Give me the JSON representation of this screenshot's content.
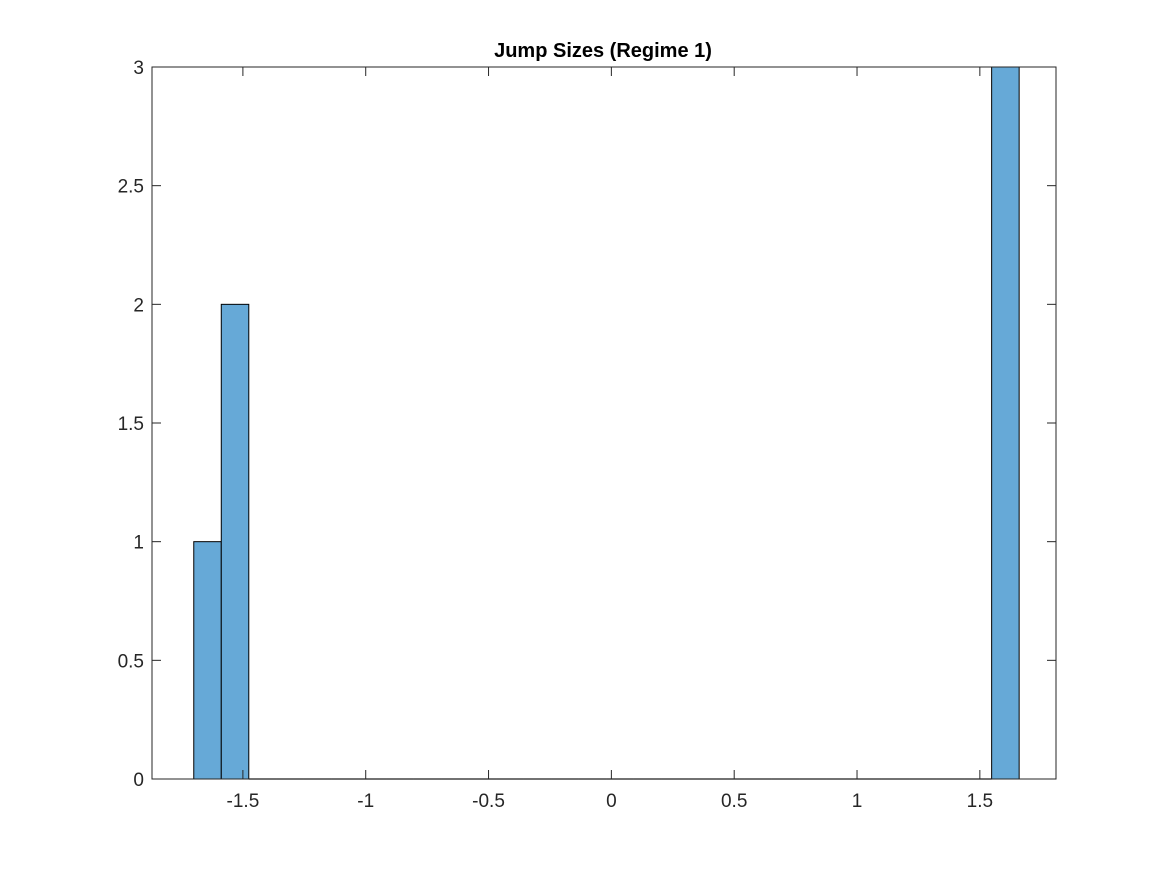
{
  "chart_data": {
    "type": "histogram",
    "title": "Jump Sizes (Regime 1)",
    "xlabel": "",
    "ylabel": "",
    "xlim": [
      -1.87,
      1.81
    ],
    "ylim": [
      0,
      3
    ],
    "x_ticks": [
      -1.5,
      -1,
      -0.5,
      0,
      0.5,
      1,
      1.5
    ],
    "x_tick_labels": [
      "-1.5",
      "-1",
      "-0.5",
      "0",
      "0.5",
      "1",
      "1.5"
    ],
    "y_ticks": [
      0,
      0.5,
      1,
      1.5,
      2,
      2.5,
      3
    ],
    "y_tick_labels": [
      "0",
      "0.5",
      "1",
      "1.5",
      "2",
      "2.5",
      "3"
    ],
    "bin_edges": [
      -1.7,
      -1.588,
      -1.476,
      -1.364,
      -1.252,
      -1.14,
      -1.028,
      -0.916,
      -0.804,
      -0.692,
      -0.58,
      -0.468,
      -0.356,
      -0.244,
      -0.132,
      -0.02,
      0.092,
      0.204,
      0.316,
      0.428,
      0.54,
      0.652,
      0.764,
      0.876,
      0.988,
      1.1,
      1.212,
      1.324,
      1.436,
      1.548,
      1.66
    ],
    "counts": [
      1,
      2,
      0,
      0,
      0,
      0,
      0,
      0,
      0,
      0,
      0,
      0,
      0,
      0,
      0,
      0,
      0,
      0,
      0,
      0,
      0,
      0,
      0,
      0,
      0,
      0,
      0,
      0,
      0,
      3
    ],
    "bar_color": "#66a9d7",
    "edge_color": "#000000",
    "grid": false,
    "legend": "none"
  }
}
